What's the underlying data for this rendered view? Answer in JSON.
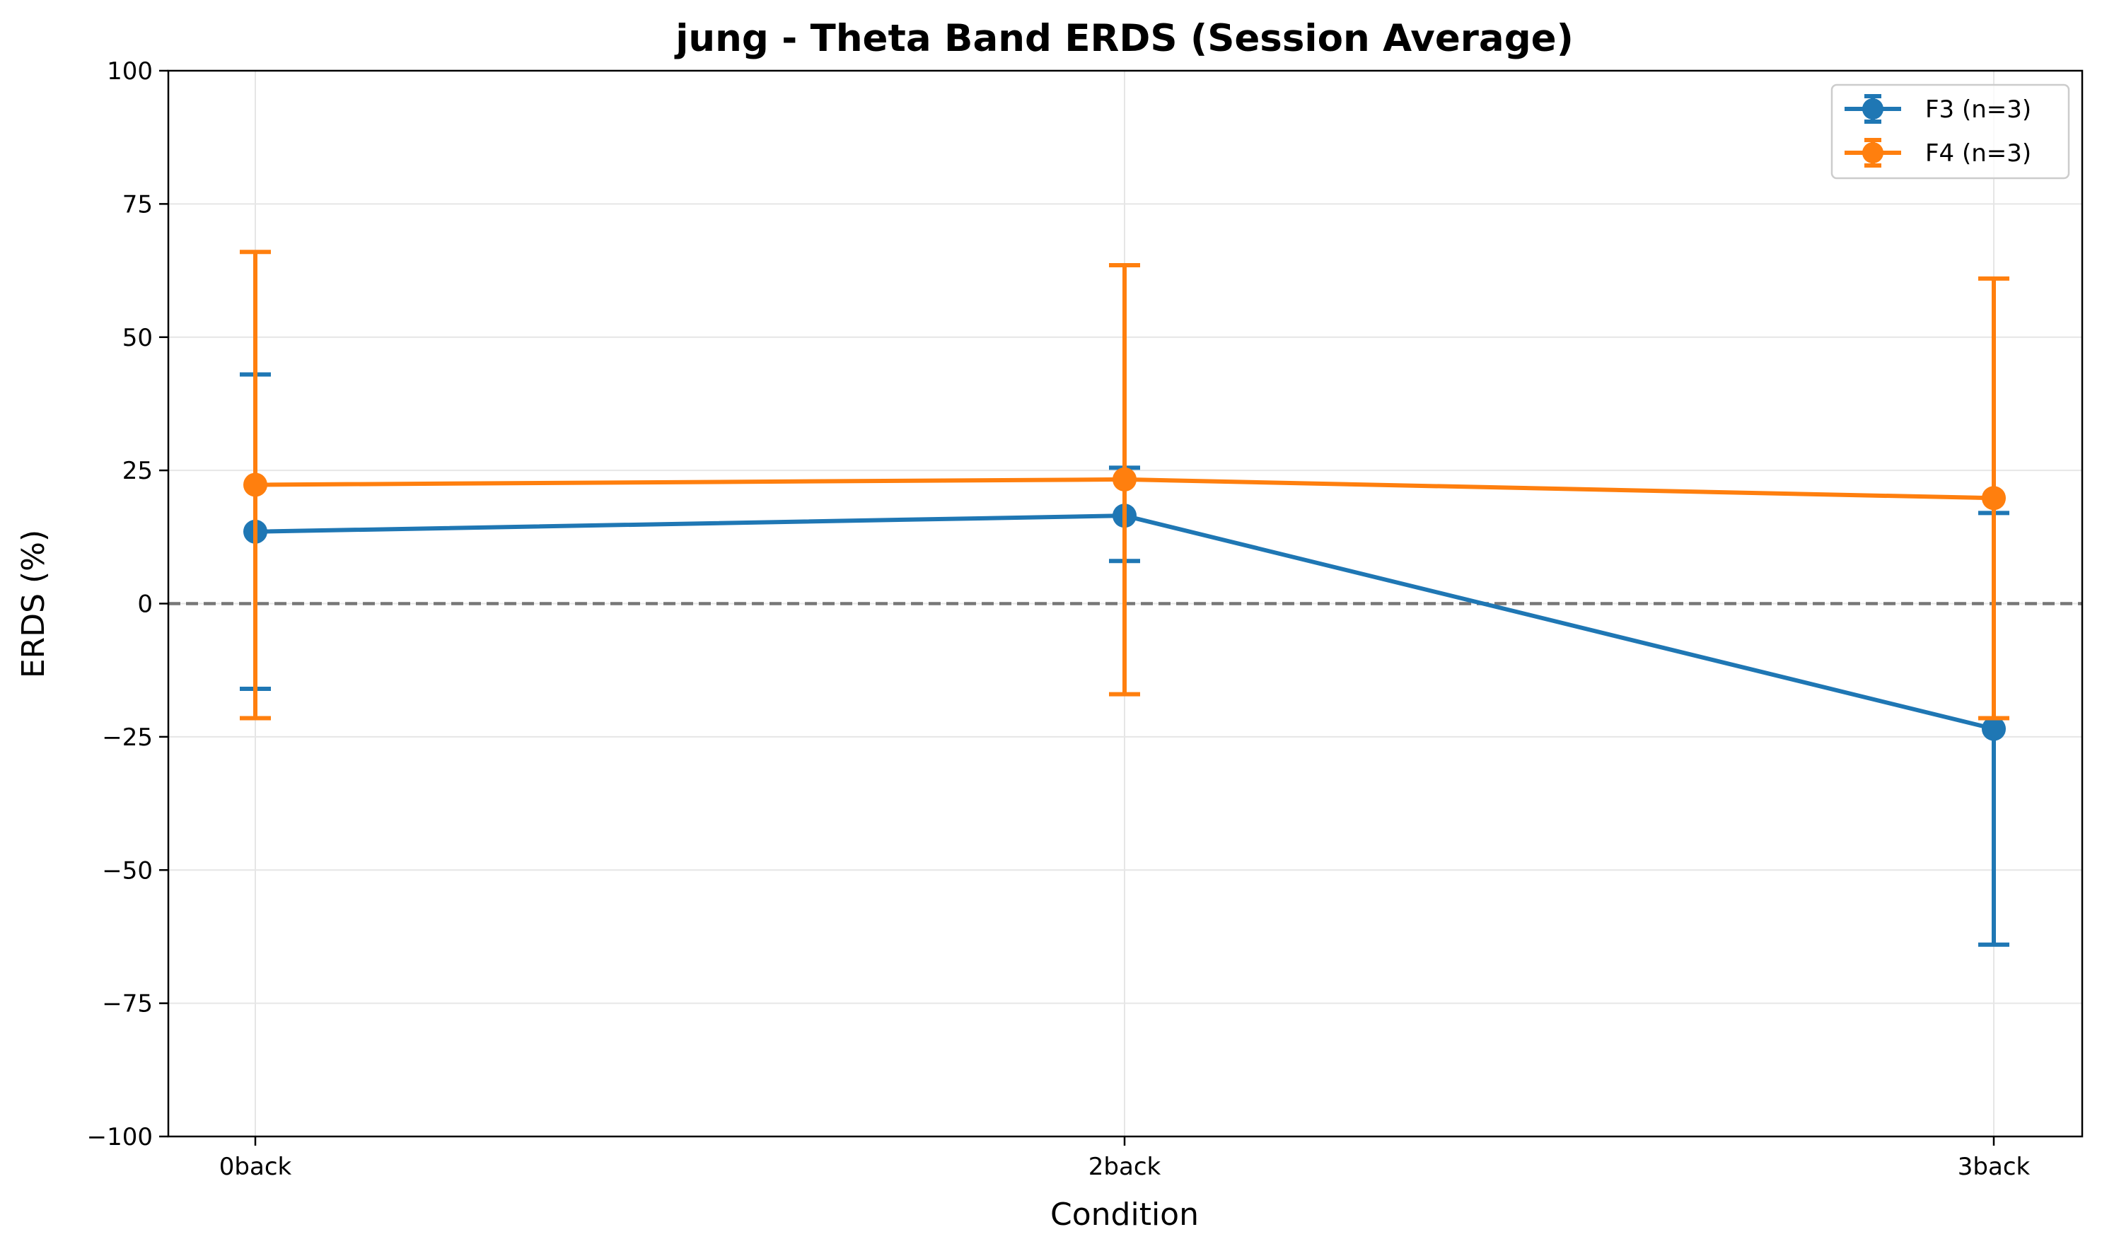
{
  "chart_data": {
    "type": "line",
    "title": "jung - Theta Band ERDS (Session Average)",
    "xlabel": "Condition",
    "ylabel": "ERDS (%)",
    "categories": [
      "0back",
      "2back",
      "3back"
    ],
    "ylim": [
      -100,
      100
    ],
    "yticks": [
      100,
      75,
      50,
      25,
      0,
      -25,
      -50,
      -75,
      -100
    ],
    "ytick_labels": [
      "100",
      "75",
      "50",
      "25",
      "0",
      "−25",
      "−50",
      "−75",
      "−100"
    ],
    "grid": true,
    "reference_line": {
      "y": 0,
      "style": "dashed",
      "color": "#777777"
    },
    "legend_position": "top-right",
    "series": [
      {
        "name": "F3 (n=3)",
        "color": "#1f77b4",
        "values": [
          13.5,
          16.5,
          -23.5
        ],
        "error_low": [
          -16,
          8,
          -64
        ],
        "error_high": [
          43,
          25.5,
          17
        ]
      },
      {
        "name": "F4 (n=3)",
        "color": "#ff7f0e",
        "values": [
          22.3,
          23.3,
          19.8
        ],
        "error_low": [
          -21.5,
          -17,
          -21.5
        ],
        "error_high": [
          66,
          63.5,
          61
        ]
      }
    ]
  }
}
